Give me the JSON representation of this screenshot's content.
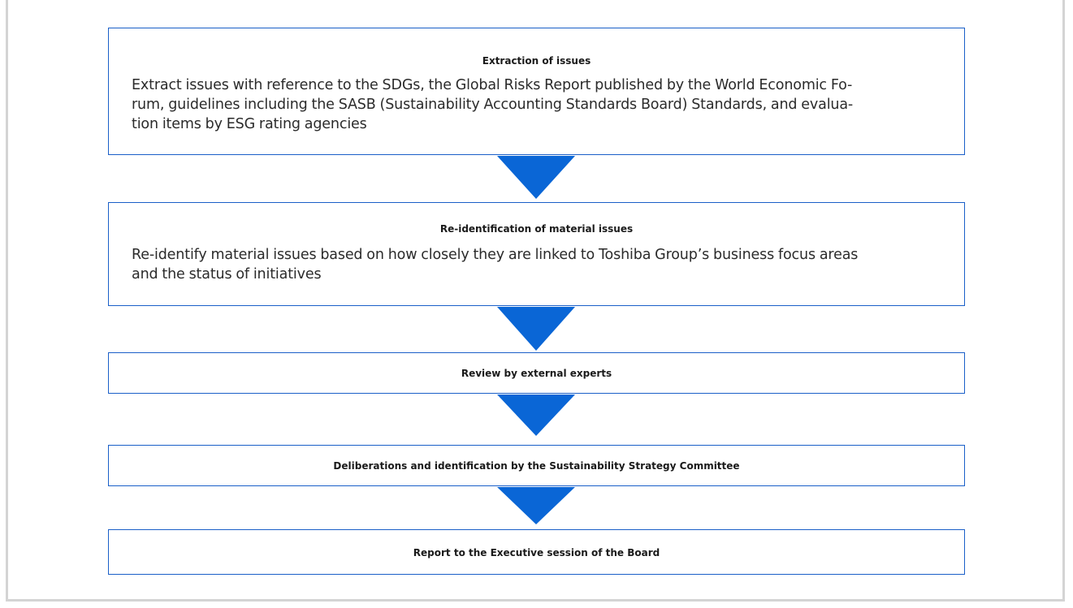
{
  "steps": [
    {
      "title": "Extraction of issues",
      "description_lines": [
        "Extract issues with reference to the SDGs, the Global Risks Report published by the World Economic Fo-",
        "rum, guidelines including the SASB (Sustainability Accounting Standards Board) Standards, and evalua-",
        "tion items by ESG rating agencies"
      ]
    },
    {
      "title": "Re-identification of material issues",
      "description_lines": [
        "Re-identify material issues based on how closely they are linked to Toshiba Group’s business focus areas",
        "and the status of initiatives"
      ]
    },
    {
      "title": "Review by external experts"
    },
    {
      "title": "Deliberations and identification by the Sustainability Strategy Committee"
    },
    {
      "title": "Report to the Executive session of the Board"
    }
  ],
  "colors": {
    "box_border": "#1a5fc8",
    "arrow": "#0a66d6",
    "frame": "#d4d4d4"
  }
}
